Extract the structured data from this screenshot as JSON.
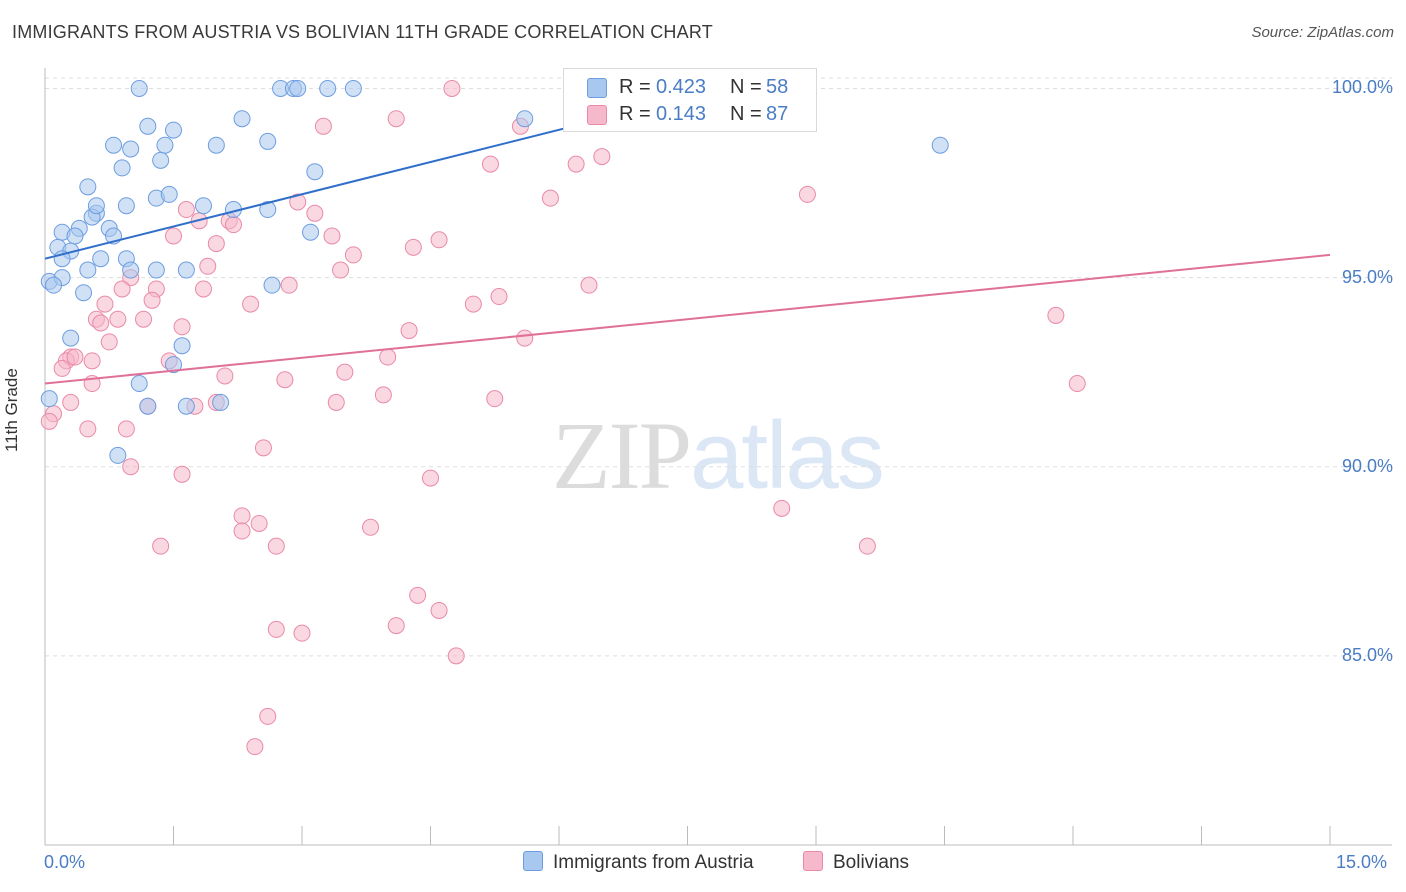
{
  "header": {
    "title": "IMMIGRANTS FROM AUSTRIA VS BOLIVIAN 11TH GRADE CORRELATION CHART",
    "source": "Source: ZipAtlas.com"
  },
  "legend_top": {
    "r_label": "R =",
    "n_label": "N =",
    "series": [
      {
        "r": "0.423",
        "n": "58"
      },
      {
        "r": "0.143",
        "n": "87"
      }
    ]
  },
  "legend_bottom": {
    "items": [
      {
        "label": "Immigrants from Austria"
      },
      {
        "label": "Bolivians"
      }
    ]
  },
  "watermark": {
    "zip": "ZIP",
    "atlas": "atlas"
  },
  "colors": {
    "blue_fill": "#a9c8ef",
    "blue_stroke": "#6d9de0",
    "blue_line": "#2f6fca",
    "pink_fill": "#f6b8cb",
    "pink_stroke": "#e98aa8",
    "pink_line": "#e07098",
    "grid": "#dddddd",
    "tick_text": "#4a7dc4"
  },
  "chart_data": {
    "type": "scatter",
    "title": "IMMIGRANTS FROM AUSTRIA VS BOLIVIAN 11TH GRADE CORRELATION CHART",
    "xlabel": "",
    "ylabel": "11th Grade",
    "xlim": [
      0,
      15
    ],
    "ylim": [
      80.0,
      100.7
    ],
    "x_tick_labels": [
      "0.0%",
      "15.0%"
    ],
    "y_ticks": [
      85,
      90,
      95,
      100
    ],
    "y_tick_labels": [
      "85.0%",
      "90.0%",
      "95.0%",
      "100.0%"
    ],
    "grid": true,
    "legend_position": "top-center",
    "series": [
      {
        "name": "Immigrants from Austria",
        "R": 0.423,
        "N": 58,
        "trend": {
          "x": [
            0.0,
            8.1
          ],
          "y": [
            95.5,
            100.1
          ]
        },
        "points": [
          [
            1.1,
            100.0
          ],
          [
            2.75,
            100.0
          ],
          [
            2.9,
            100.0
          ],
          [
            2.95,
            100.0
          ],
          [
            3.3,
            100.0
          ],
          [
            3.6,
            100.0
          ],
          [
            5.6,
            99.2
          ],
          [
            1.2,
            99.0
          ],
          [
            1.5,
            98.9
          ],
          [
            2.3,
            99.2
          ],
          [
            0.8,
            98.5
          ],
          [
            1.0,
            98.4
          ],
          [
            1.4,
            98.5
          ],
          [
            1.35,
            98.1
          ],
          [
            2.0,
            98.5
          ],
          [
            2.6,
            98.6
          ],
          [
            0.9,
            97.9
          ],
          [
            3.15,
            97.8
          ],
          [
            10.45,
            98.5
          ],
          [
            0.5,
            97.4
          ],
          [
            1.3,
            97.1
          ],
          [
            1.45,
            97.2
          ],
          [
            0.6,
            96.7
          ],
          [
            0.95,
            96.9
          ],
          [
            1.85,
            96.9
          ],
          [
            2.2,
            96.8
          ],
          [
            2.6,
            96.8
          ],
          [
            0.55,
            96.6
          ],
          [
            0.4,
            96.3
          ],
          [
            0.75,
            96.3
          ],
          [
            0.2,
            96.2
          ],
          [
            0.35,
            96.1
          ],
          [
            0.8,
            96.1
          ],
          [
            3.1,
            96.2
          ],
          [
            0.15,
            95.8
          ],
          [
            0.3,
            95.7
          ],
          [
            0.65,
            95.5
          ],
          [
            0.95,
            95.5
          ],
          [
            0.5,
            95.2
          ],
          [
            1.0,
            95.2
          ],
          [
            1.3,
            95.2
          ],
          [
            1.65,
            95.2
          ],
          [
            0.05,
            94.9
          ],
          [
            0.2,
            95.0
          ],
          [
            0.1,
            94.8
          ],
          [
            2.65,
            94.8
          ],
          [
            0.45,
            94.6
          ],
          [
            0.3,
            93.4
          ],
          [
            1.6,
            93.2
          ],
          [
            1.5,
            92.7
          ],
          [
            1.1,
            92.2
          ],
          [
            0.05,
            91.8
          ],
          [
            1.2,
            91.6
          ],
          [
            1.65,
            91.6
          ],
          [
            2.05,
            91.7
          ],
          [
            0.85,
            90.3
          ],
          [
            0.2,
            95.5
          ],
          [
            0.6,
            96.9
          ]
        ]
      },
      {
        "name": "Bolivians",
        "R": 0.143,
        "N": 87,
        "trend": {
          "x": [
            0.0,
            15.0
          ],
          "y": [
            92.2,
            95.6
          ]
        },
        "points": [
          [
            4.75,
            100.0
          ],
          [
            8.0,
            100.0
          ],
          [
            4.1,
            99.2
          ],
          [
            3.25,
            99.0
          ],
          [
            5.55,
            99.0
          ],
          [
            6.5,
            98.2
          ],
          [
            5.2,
            98.0
          ],
          [
            6.2,
            98.0
          ],
          [
            5.9,
            97.1
          ],
          [
            8.9,
            97.2
          ],
          [
            2.95,
            97.0
          ],
          [
            1.65,
            96.8
          ],
          [
            3.15,
            96.7
          ],
          [
            1.8,
            96.5
          ],
          [
            2.15,
            96.5
          ],
          [
            2.2,
            96.4
          ],
          [
            1.5,
            96.1
          ],
          [
            3.35,
            96.1
          ],
          [
            2.0,
            95.9
          ],
          [
            4.6,
            96.0
          ],
          [
            4.3,
            95.8
          ],
          [
            3.6,
            95.6
          ],
          [
            1.9,
            95.3
          ],
          [
            3.45,
            95.2
          ],
          [
            1.0,
            95.0
          ],
          [
            2.85,
            94.8
          ],
          [
            6.35,
            94.8
          ],
          [
            1.3,
            94.7
          ],
          [
            0.9,
            94.7
          ],
          [
            1.85,
            94.7
          ],
          [
            5.3,
            94.5
          ],
          [
            1.25,
            94.4
          ],
          [
            2.4,
            94.3
          ],
          [
            5.0,
            94.3
          ],
          [
            0.7,
            94.3
          ],
          [
            11.8,
            94.0
          ],
          [
            0.6,
            93.9
          ],
          [
            0.85,
            93.9
          ],
          [
            1.15,
            93.9
          ],
          [
            0.65,
            93.8
          ],
          [
            1.6,
            93.7
          ],
          [
            4.25,
            93.6
          ],
          [
            5.6,
            93.4
          ],
          [
            0.75,
            93.3
          ],
          [
            0.3,
            92.9
          ],
          [
            4.0,
            92.9
          ],
          [
            0.25,
            92.8
          ],
          [
            0.55,
            92.8
          ],
          [
            1.45,
            92.8
          ],
          [
            0.2,
            92.6
          ],
          [
            3.5,
            92.5
          ],
          [
            2.1,
            92.4
          ],
          [
            2.8,
            92.3
          ],
          [
            0.55,
            92.2
          ],
          [
            12.05,
            92.2
          ],
          [
            3.95,
            91.9
          ],
          [
            5.25,
            91.8
          ],
          [
            2.0,
            91.7
          ],
          [
            3.4,
            91.7
          ],
          [
            0.3,
            91.7
          ],
          [
            1.75,
            91.6
          ],
          [
            1.2,
            91.6
          ],
          [
            0.1,
            91.4
          ],
          [
            0.05,
            91.2
          ],
          [
            0.5,
            91.0
          ],
          [
            0.95,
            91.0
          ],
          [
            2.55,
            90.5
          ],
          [
            1.0,
            90.0
          ],
          [
            1.6,
            89.8
          ],
          [
            4.5,
            89.7
          ],
          [
            8.6,
            88.9
          ],
          [
            2.3,
            88.7
          ],
          [
            2.5,
            88.5
          ],
          [
            3.8,
            88.4
          ],
          [
            2.3,
            88.3
          ],
          [
            1.35,
            87.9
          ],
          [
            2.7,
            87.9
          ],
          [
            9.6,
            87.9
          ],
          [
            4.35,
            86.6
          ],
          [
            4.6,
            86.2
          ],
          [
            4.1,
            85.8
          ],
          [
            2.7,
            85.7
          ],
          [
            3.0,
            85.6
          ],
          [
            4.8,
            85.0
          ],
          [
            2.6,
            83.4
          ],
          [
            2.45,
            82.6
          ],
          [
            0.35,
            92.9
          ]
        ]
      }
    ]
  }
}
